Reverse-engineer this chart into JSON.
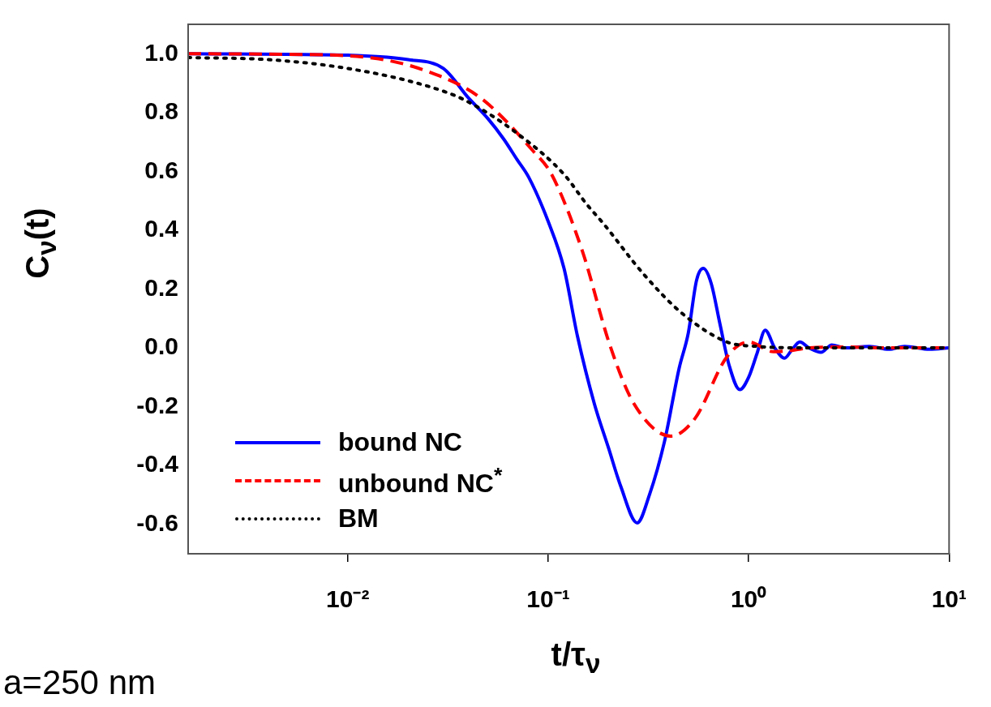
{
  "chart_data": {
    "type": "line",
    "xlabel": "t/τ$_{ν}$",
    "ylabel": "C$_{ν}$(t)",
    "log": "x",
    "grid": false,
    "legend": "bottom left",
    "marker": "none",
    "xlim": [
      0.0016,
      10
    ],
    "xticks": [
      {
        "value": 0.01,
        "label": "10⁻²"
      },
      {
        "value": 0.1,
        "label": "10⁻¹"
      },
      {
        "value": 1,
        "label": "10⁰"
      },
      {
        "value": 10,
        "label": "10¹"
      }
    ],
    "ylim": [
      -0.7,
      1.1
    ],
    "yticks": [
      {
        "value": -0.6,
        "label": "-0.6"
      },
      {
        "value": -0.4,
        "label": "-0.4"
      },
      {
        "value": -0.2,
        "label": "-0.2"
      },
      {
        "value": 0,
        "label": "0.0"
      },
      {
        "value": 0.2,
        "label": "0.2"
      },
      {
        "value": 0.4,
        "label": "0.4"
      },
      {
        "value": 0.6,
        "label": "0.6"
      },
      {
        "value": 0.8,
        "label": "0.8"
      },
      {
        "value": 1,
        "label": "1.0"
      }
    ],
    "annotations": [
      "a=250 nm"
    ],
    "series": [
      {
        "name": "bound NC",
        "color": "#0000ff",
        "line_style": "solid",
        "x": [
          0.0016,
          0.005,
          0.01,
          0.02,
          0.03,
          0.04,
          0.05,
          0.06,
          0.07,
          0.08,
          0.1,
          0.12,
          0.14,
          0.17,
          0.2,
          0.23,
          0.278,
          0.32,
          0.38,
          0.45,
          0.5,
          0.55,
          0.594,
          0.65,
          0.72,
          0.8,
          0.904,
          1.0,
          1.1,
          1.21,
          1.35,
          1.51,
          1.65,
          1.8,
          2.0,
          2.3,
          2.6,
          3,
          4,
          5,
          6,
          8,
          10
        ],
        "values": [
          1.0,
          0.998,
          0.995,
          0.98,
          0.95,
          0.85,
          0.78,
          0.71,
          0.64,
          0.58,
          0.43,
          0.27,
          0.04,
          -0.19,
          -0.34,
          -0.47,
          -0.595,
          -0.5,
          -0.32,
          -0.07,
          0.05,
          0.23,
          0.27,
          0.22,
          0.08,
          -0.06,
          -0.142,
          -0.1,
          -0.02,
          0.06,
          0.0,
          -0.035,
          -0.005,
          0.02,
          0.0,
          -0.015,
          0.01,
          0.0,
          0.005,
          -0.005,
          0.005,
          -0.005,
          0.0
        ]
      },
      {
        "name": "unbound NC$^{*}$",
        "color": "#ff0000",
        "line_style": "dashed",
        "x": [
          0.0016,
          0.005,
          0.0135,
          0.025,
          0.046,
          0.084,
          0.104,
          0.148,
          0.203,
          0.268,
          0.41,
          0.54,
          0.78,
          1.0,
          1.33,
          1.57,
          2,
          3,
          5,
          10
        ],
        "values": [
          1.0,
          0.998,
          0.985,
          0.94,
          0.85,
          0.67,
          0.59,
          0.33,
          0.01,
          -0.19,
          -0.3,
          -0.24,
          -0.03,
          0.02,
          -0.013,
          -0.01,
          0.0,
          0.003,
          0.0,
          0.0
        ]
      },
      {
        "name": "BM",
        "color": "#000000",
        "line_style": "dotted",
        "x": [
          0.0016,
          0.004,
          0.01,
          0.025,
          0.039,
          0.073,
          0.12,
          0.155,
          0.19,
          0.3,
          0.47,
          0.78,
          1.1,
          2,
          5,
          10
        ],
        "values": [
          0.987,
          0.98,
          0.95,
          0.89,
          0.84,
          0.72,
          0.59,
          0.49,
          0.42,
          0.25,
          0.115,
          0.02,
          0.005,
          0.0,
          0.0,
          0.0
        ]
      }
    ]
  }
}
